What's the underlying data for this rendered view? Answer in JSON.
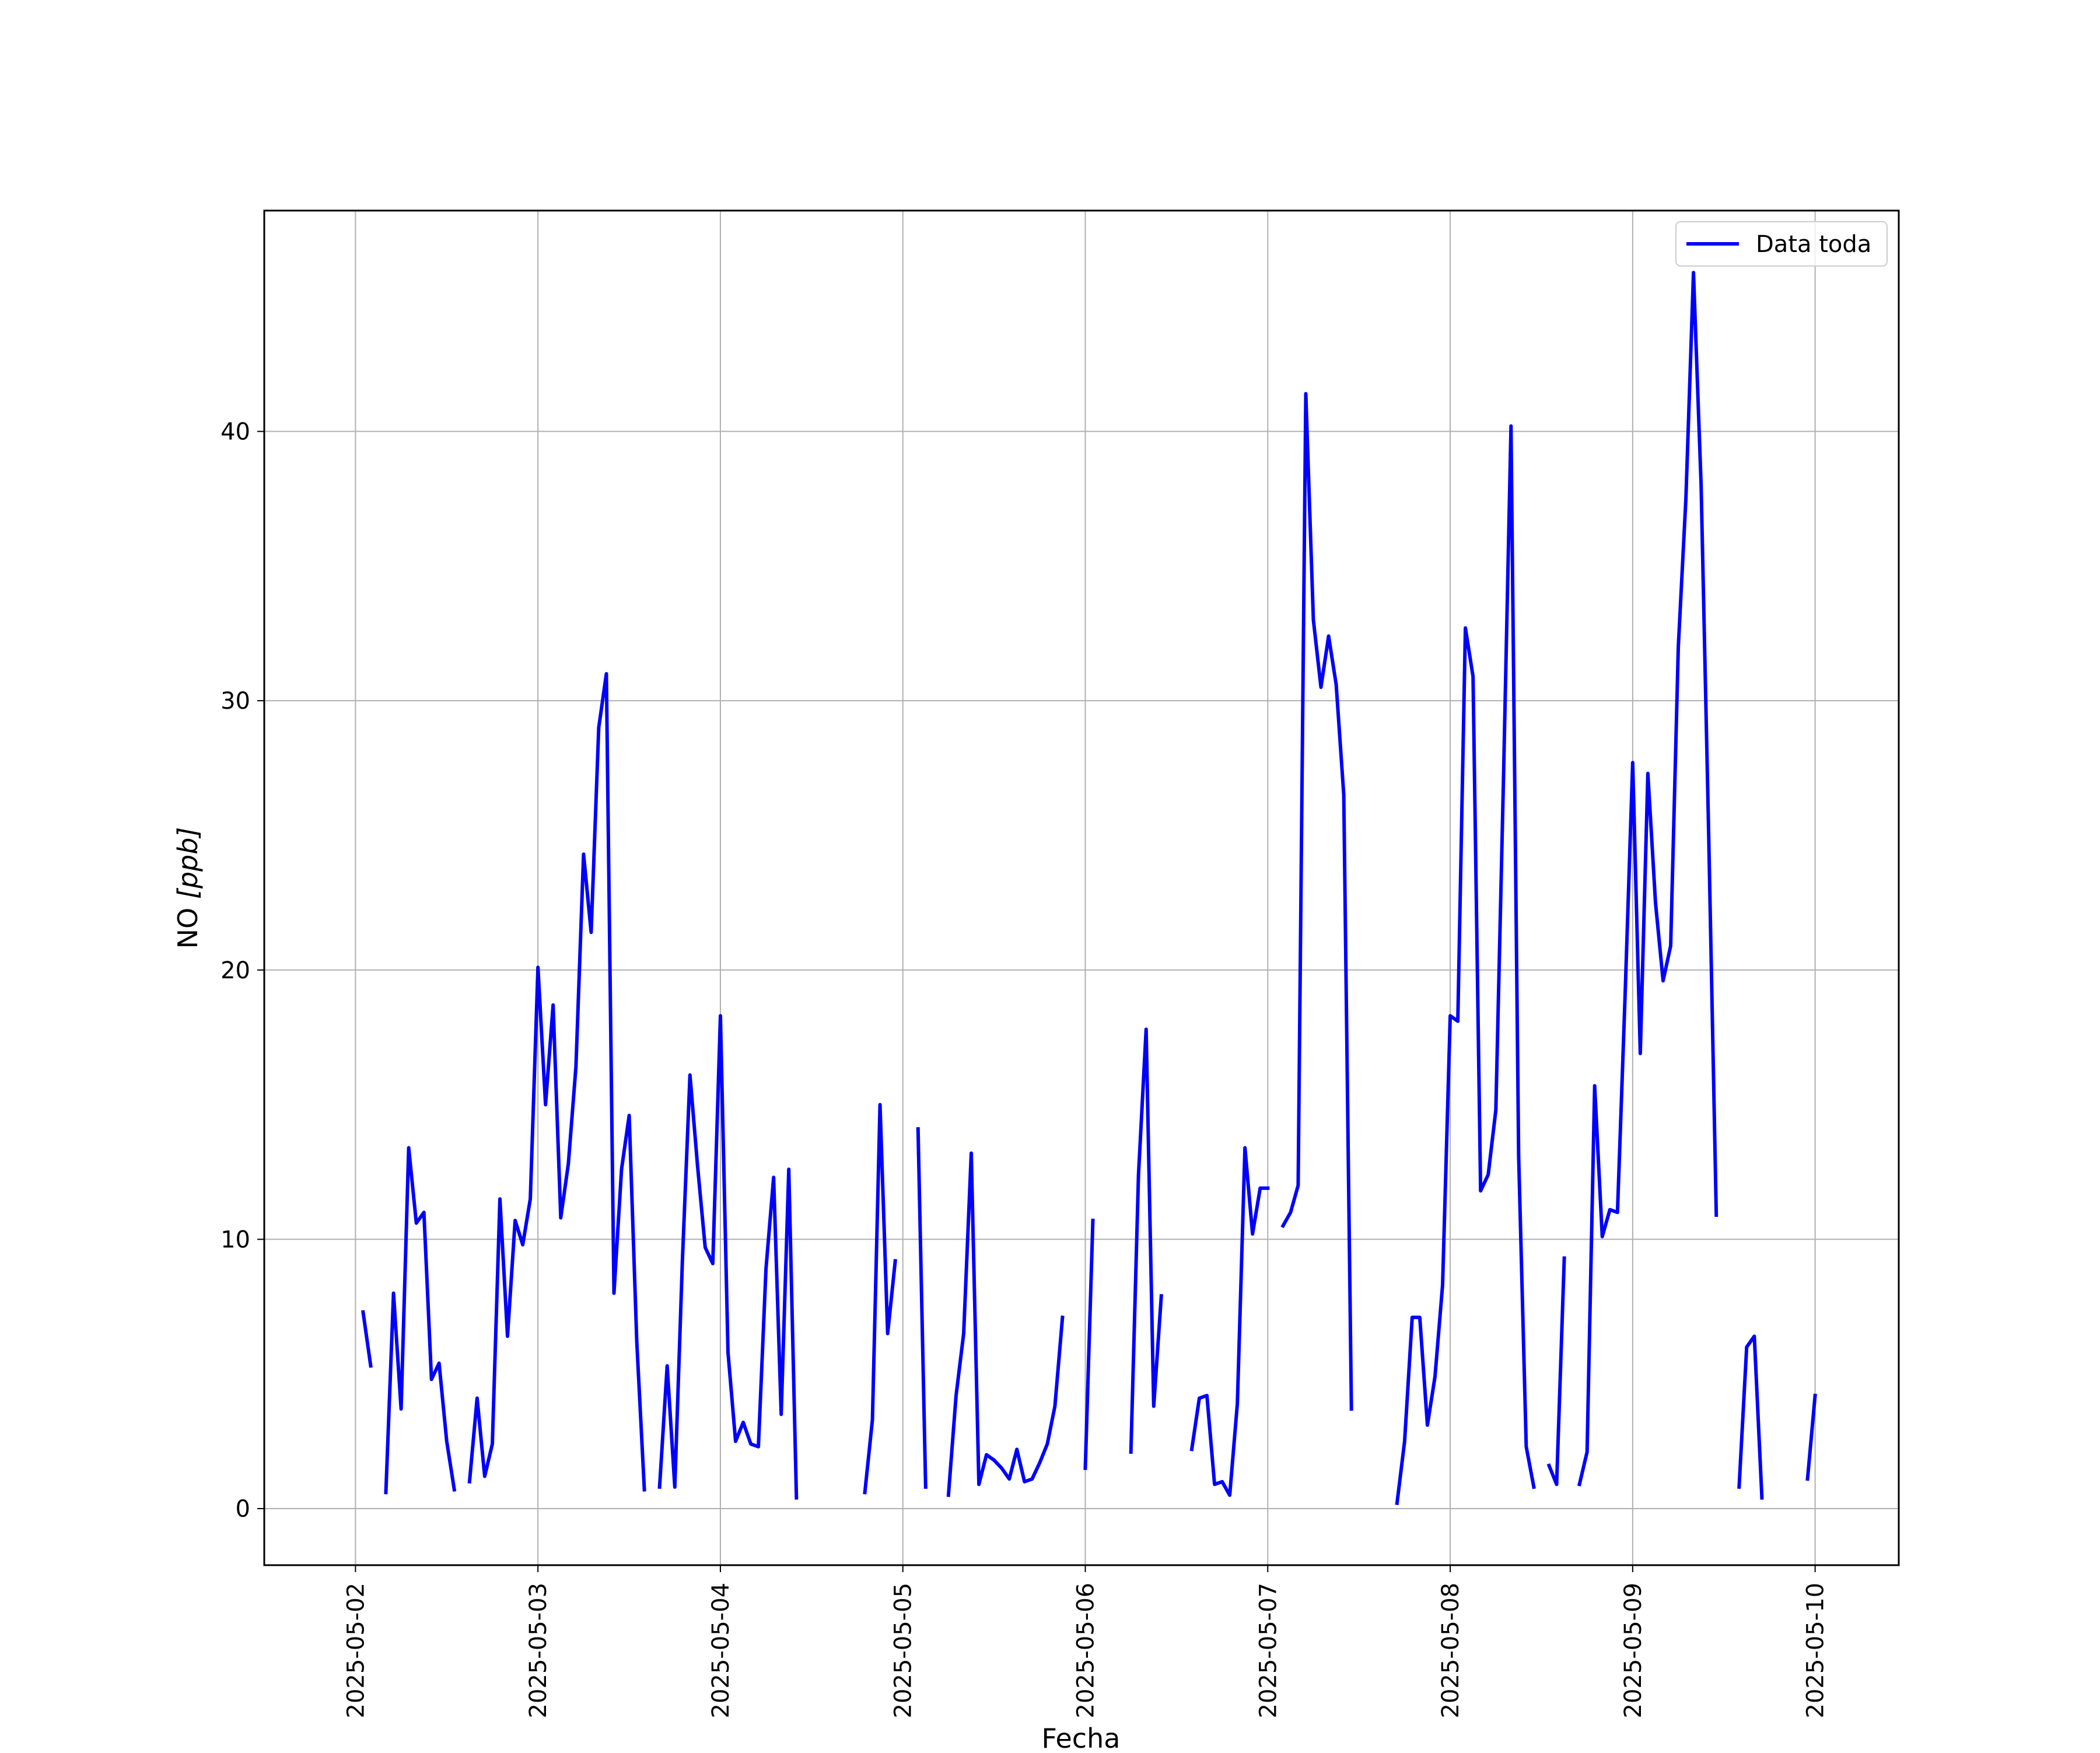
{
  "chart_data": {
    "type": "line",
    "title": "",
    "xlabel": "Fecha",
    "ylabel_prefix": "NO ",
    "ylabel_unit": "[ppb]",
    "x_ticks": [
      "2025-05-02",
      "2025-05-03",
      "2025-05-04",
      "2025-05-05",
      "2025-05-06",
      "2025-05-07",
      "2025-05-08",
      "2025-05-09",
      "2025-05-10"
    ],
    "y_ticks": [
      0,
      10,
      20,
      30,
      40
    ],
    "xlim": [
      "2025-05-01 12:00",
      "2025-05-10 11:00"
    ],
    "ylim": [
      -2.1,
      48.2
    ],
    "grid": true,
    "legend": {
      "placement": "top-right",
      "entries": [
        "Data toda"
      ]
    },
    "series": [
      {
        "name": "Data toda",
        "color": "#0000ff",
        "segments": [
          [
            [
              "2025-05-02 01:00",
              7.3
            ],
            [
              "2025-05-02 02:00",
              5.3
            ]
          ],
          [
            [
              "2025-05-02 04:00",
              0.6
            ],
            [
              "2025-05-02 05:00",
              8.0
            ],
            [
              "2025-05-02 06:00",
              3.7
            ],
            [
              "2025-05-02 07:00",
              13.4
            ],
            [
              "2025-05-02 08:00",
              10.6
            ],
            [
              "2025-05-02 09:00",
              11.0
            ],
            [
              "2025-05-02 10:00",
              4.8
            ],
            [
              "2025-05-02 11:00",
              5.4
            ],
            [
              "2025-05-02 12:00",
              2.5
            ],
            [
              "2025-05-02 13:00",
              0.7
            ]
          ],
          [
            [
              "2025-05-02 15:00",
              1.0
            ],
            [
              "2025-05-02 16:00",
              4.1
            ],
            [
              "2025-05-02 17:00",
              1.2
            ],
            [
              "2025-05-02 18:00",
              2.4
            ],
            [
              "2025-05-02 19:00",
              11.5
            ],
            [
              "2025-05-02 20:00",
              6.4
            ],
            [
              "2025-05-02 21:00",
              10.7
            ],
            [
              "2025-05-02 22:00",
              9.8
            ],
            [
              "2025-05-02 23:00",
              11.5
            ],
            [
              "2025-05-03 00:00",
              20.1
            ],
            [
              "2025-05-03 01:00",
              15.0
            ],
            [
              "2025-05-03 02:00",
              18.7
            ],
            [
              "2025-05-03 03:00",
              10.8
            ],
            [
              "2025-05-03 04:00",
              12.8
            ],
            [
              "2025-05-03 05:00",
              16.4
            ],
            [
              "2025-05-03 06:00",
              24.3
            ],
            [
              "2025-05-03 07:00",
              21.4
            ],
            [
              "2025-05-03 08:00",
              29.0
            ],
            [
              "2025-05-03 09:00",
              31.0
            ],
            [
              "2025-05-03 10:00",
              8.0
            ],
            [
              "2025-05-03 11:00",
              12.6
            ],
            [
              "2025-05-03 12:00",
              14.6
            ],
            [
              "2025-05-03 13:00",
              6.2
            ],
            [
              "2025-05-03 14:00",
              0.7
            ]
          ],
          [
            [
              "2025-05-03 16:00",
              0.8
            ],
            [
              "2025-05-03 17:00",
              5.3
            ],
            [
              "2025-05-03 18:00",
              0.8
            ],
            [
              "2025-05-03 19:00",
              9.2
            ],
            [
              "2025-05-03 20:00",
              16.1
            ],
            [
              "2025-05-03 21:00",
              12.7
            ],
            [
              "2025-05-03 22:00",
              9.7
            ],
            [
              "2025-05-03 23:00",
              9.1
            ],
            [
              "2025-05-04 00:00",
              18.3
            ],
            [
              "2025-05-04 01:00",
              5.8
            ],
            [
              "2025-05-04 02:00",
              2.5
            ],
            [
              "2025-05-04 03:00",
              3.2
            ],
            [
              "2025-05-04 04:00",
              2.4
            ],
            [
              "2025-05-04 05:00",
              2.3
            ],
            [
              "2025-05-04 06:00",
              8.9
            ],
            [
              "2025-05-04 07:00",
              12.3
            ],
            [
              "2025-05-04 08:00",
              3.5
            ],
            [
              "2025-05-04 09:00",
              12.6
            ],
            [
              "2025-05-04 10:00",
              0.4
            ]
          ],
          [
            [
              "2025-05-04 19:00",
              0.6
            ],
            [
              "2025-05-04 20:00",
              3.3
            ],
            [
              "2025-05-04 21:00",
              15.0
            ],
            [
              "2025-05-04 22:00",
              6.5
            ],
            [
              "2025-05-04 23:00",
              9.2
            ]
          ],
          [
            [
              "2025-05-05 02:00",
              14.1
            ],
            [
              "2025-05-05 03:00",
              0.8
            ]
          ],
          [
            [
              "2025-05-05 06:00",
              0.5
            ],
            [
              "2025-05-05 07:00",
              4.2
            ],
            [
              "2025-05-05 08:00",
              6.5
            ],
            [
              "2025-05-05 09:00",
              13.2
            ],
            [
              "2025-05-05 10:00",
              0.9
            ],
            [
              "2025-05-05 11:00",
              2.0
            ],
            [
              "2025-05-05 12:00",
              1.8
            ],
            [
              "2025-05-05 13:00",
              1.5
            ],
            [
              "2025-05-05 14:00",
              1.1
            ],
            [
              "2025-05-05 15:00",
              2.2
            ],
            [
              "2025-05-05 16:00",
              1.0
            ],
            [
              "2025-05-05 17:00",
              1.1
            ],
            [
              "2025-05-05 18:00",
              1.7
            ],
            [
              "2025-05-05 19:00",
              2.4
            ],
            [
              "2025-05-05 20:00",
              3.8
            ],
            [
              "2025-05-05 21:00",
              7.1
            ]
          ],
          [
            [
              "2025-05-06 00:00",
              1.5
            ],
            [
              "2025-05-06 01:00",
              10.7
            ]
          ],
          [
            [
              "2025-05-06 06:00",
              2.1
            ],
            [
              "2025-05-06 07:00",
              12.4
            ],
            [
              "2025-05-06 08:00",
              17.8
            ],
            [
              "2025-05-06 09:00",
              3.8
            ],
            [
              "2025-05-06 10:00",
              7.9
            ]
          ],
          [
            [
              "2025-05-06 14:00",
              2.2
            ],
            [
              "2025-05-06 15:00",
              4.1
            ],
            [
              "2025-05-06 16:00",
              4.2
            ],
            [
              "2025-05-06 17:00",
              0.9
            ],
            [
              "2025-05-06 18:00",
              1.0
            ],
            [
              "2025-05-06 19:00",
              0.5
            ],
            [
              "2025-05-06 20:00",
              3.9
            ],
            [
              "2025-05-06 21:00",
              13.4
            ],
            [
              "2025-05-06 22:00",
              10.2
            ],
            [
              "2025-05-06 23:00",
              11.9
            ],
            [
              "2025-05-07 00:00",
              11.9
            ]
          ],
          [
            [
              "2025-05-07 02:00",
              10.5
            ],
            [
              "2025-05-07 03:00",
              11.0
            ],
            [
              "2025-05-07 04:00",
              12.0
            ],
            [
              "2025-05-07 05:00",
              41.4
            ],
            [
              "2025-05-07 06:00",
              33.0
            ],
            [
              "2025-05-07 07:00",
              30.5
            ],
            [
              "2025-05-07 08:00",
              32.4
            ],
            [
              "2025-05-07 09:00",
              30.6
            ],
            [
              "2025-05-07 10:00",
              26.5
            ],
            [
              "2025-05-07 11:00",
              3.7
            ]
          ],
          [
            [
              "2025-05-07 17:00",
              0.2
            ],
            [
              "2025-05-07 18:00",
              2.5
            ],
            [
              "2025-05-07 19:00",
              7.1
            ],
            [
              "2025-05-07 20:00",
              7.1
            ],
            [
              "2025-05-07 21:00",
              3.1
            ],
            [
              "2025-05-07 22:00",
              4.9
            ],
            [
              "2025-05-07 23:00",
              8.3
            ],
            [
              "2025-05-08 00:00",
              18.3
            ],
            [
              "2025-05-08 01:00",
              18.1
            ],
            [
              "2025-05-08 02:00",
              32.7
            ],
            [
              "2025-05-08 03:00",
              30.9
            ],
            [
              "2025-05-08 04:00",
              11.8
            ],
            [
              "2025-05-08 05:00",
              12.4
            ],
            [
              "2025-05-08 06:00",
              14.8
            ],
            [
              "2025-05-08 07:00",
              27.0
            ],
            [
              "2025-05-08 08:00",
              40.2
            ],
            [
              "2025-05-08 09:00",
              13.1
            ],
            [
              "2025-05-08 10:00",
              2.3
            ],
            [
              "2025-05-08 11:00",
              0.8
            ]
          ],
          [
            [
              "2025-05-08 13:00",
              1.6
            ],
            [
              "2025-05-08 14:00",
              0.9
            ],
            [
              "2025-05-08 15:00",
              9.3
            ]
          ],
          [
            [
              "2025-05-08 17:00",
              0.9
            ],
            [
              "2025-05-08 18:00",
              2.1
            ],
            [
              "2025-05-08 19:00",
              15.7
            ],
            [
              "2025-05-08 20:00",
              10.1
            ],
            [
              "2025-05-08 21:00",
              11.1
            ],
            [
              "2025-05-08 22:00",
              11.0
            ],
            [
              "2025-05-08 23:00",
              19.0
            ],
            [
              "2025-05-09 00:00",
              27.7
            ],
            [
              "2025-05-09 01:00",
              16.9
            ],
            [
              "2025-05-09 02:00",
              27.3
            ],
            [
              "2025-05-09 03:00",
              22.5
            ],
            [
              "2025-05-09 04:00",
              19.6
            ],
            [
              "2025-05-09 05:00",
              20.9
            ],
            [
              "2025-05-09 06:00",
              32.0
            ],
            [
              "2025-05-09 07:00",
              37.5
            ],
            [
              "2025-05-09 08:00",
              45.9
            ],
            [
              "2025-05-09 09:00",
              38.0
            ],
            [
              "2025-05-09 10:00",
              25.0
            ],
            [
              "2025-05-09 11:00",
              10.9
            ]
          ],
          [
            [
              "2025-05-09 14:00",
              0.8
            ],
            [
              "2025-05-09 15:00",
              6.0
            ],
            [
              "2025-05-09 16:00",
              6.4
            ],
            [
              "2025-05-09 17:00",
              0.4
            ]
          ],
          [
            [
              "2025-05-09 23:00",
              1.1
            ],
            [
              "2025-05-10 00:00",
              4.2
            ]
          ]
        ]
      }
    ]
  }
}
